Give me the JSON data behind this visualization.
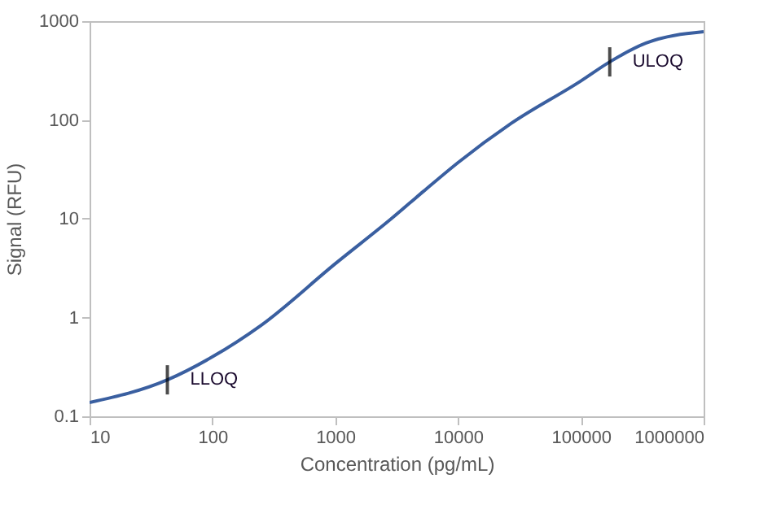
{
  "chart_data": {
    "type": "line",
    "xlabel": "Concentration (pg/mL)",
    "ylabel": "Signal (RFU)",
    "log": "xy",
    "x": [
      10,
      43,
      100,
      248,
      1000,
      2860,
      5250,
      10000,
      27000,
      100000,
      172000,
      340000,
      1000000
    ],
    "series": [
      {
        "color": "#3a5fa0",
        "values": [
          0.138,
          0.234,
          0.4,
          0.83,
          3.5,
          10,
          19,
          37,
          92,
          248,
          387,
          600,
          780
        ]
      }
    ],
    "xlim": [
      10,
      1000000
    ],
    "xticks": [
      10,
      100,
      1000,
      10000,
      100000,
      1000000
    ],
    "ylim": [
      0.1,
      1000
    ],
    "yticks": [
      0.1,
      1,
      10,
      100,
      1000
    ],
    "grid": false,
    "marker": "none",
    "line_style": "solid",
    "annotations": [
      {
        "text": "LLOQ",
        "x": 43,
        "y": 0.234
      },
      {
        "text": "ULOQ",
        "x": 172000,
        "y": 387
      }
    ]
  }
}
